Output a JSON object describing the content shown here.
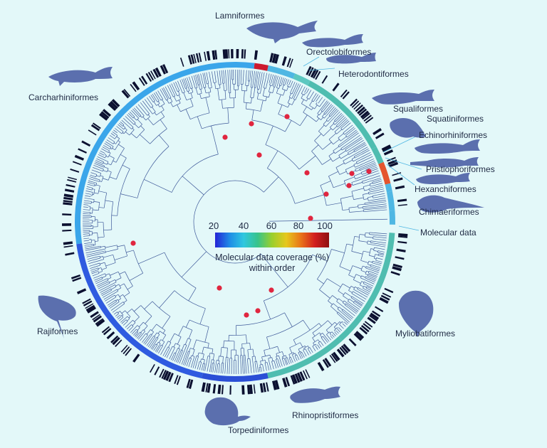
{
  "orders": [
    {
      "name": "Lamniformes",
      "coverage": 95,
      "color": "#cc1a2e",
      "silhouette": "shark-silhouette"
    },
    {
      "name": "Orectolobiformes",
      "coverage": 52,
      "color": "#4fb7e3",
      "silhouette": "shark-silhouette"
    },
    {
      "name": "Heterodontiformes",
      "coverage": 58,
      "color": "#5cc8c0",
      "silhouette": "shark-silhouette"
    },
    {
      "name": "Squaliformes",
      "coverage": 60,
      "color": "#4fbdb0",
      "silhouette": "shark-silhouette"
    },
    {
      "name": "Squatiniformes",
      "coverage": 60,
      "color": "#4fbdb0",
      "silhouette": "angel-shark-silhouette"
    },
    {
      "name": "Echinorhiniformes",
      "coverage": 88,
      "color": "#e4552e",
      "silhouette": "shark-silhouette"
    },
    {
      "name": "Pristiophoriformes",
      "coverage": 58,
      "color": "#4fb7e3",
      "silhouette": "sawshark-silhouette"
    },
    {
      "name": "Hexanchiformes",
      "coverage": 56,
      "color": "#4fb7e3",
      "silhouette": "shark-silhouette"
    },
    {
      "name": "Chimaeriformes",
      "coverage": 55,
      "color": "#4fb7e3",
      "silhouette": "chimaera-silhouette"
    },
    {
      "name": "Myliobatiformes",
      "coverage": 60,
      "color": "#4fbdb0",
      "silhouette": "stingray-silhouette"
    },
    {
      "name": "Rhinopristiformes",
      "coverage": 58,
      "color": "#4fbdb0",
      "silhouette": "guitarfish-silhouette"
    },
    {
      "name": "Torpediniformes",
      "coverage": 35,
      "color": "#2b4fd6",
      "silhouette": "electric-ray-silhouette"
    },
    {
      "name": "Rajiformes",
      "coverage": 38,
      "color": "#2f5be0",
      "silhouette": "skate-silhouette"
    },
    {
      "name": "Carcharhiniformes",
      "coverage": 48,
      "color": "#3aa6ea",
      "silhouette": "shark-silhouette"
    }
  ],
  "legend": {
    "ticks": [
      "20",
      "40",
      "60",
      "80",
      "100"
    ],
    "caption_line1": "Molecular data coverage (%)",
    "caption_line2": "within order",
    "colors": [
      "#2424d6",
      "#1f8ae6",
      "#2ec7e0",
      "#37c48a",
      "#9bcf2c",
      "#e6c81e",
      "#e9761a",
      "#d21f1f",
      "#8e0f0f"
    ]
  },
  "molecular_label": "Molecular data",
  "colors": {
    "background": "#e3f8f9",
    "branch": "#3f5a9a",
    "node_marker": "#e0263f",
    "outer_ring": "#0b1030",
    "silhouette": "#5b6fae"
  }
}
